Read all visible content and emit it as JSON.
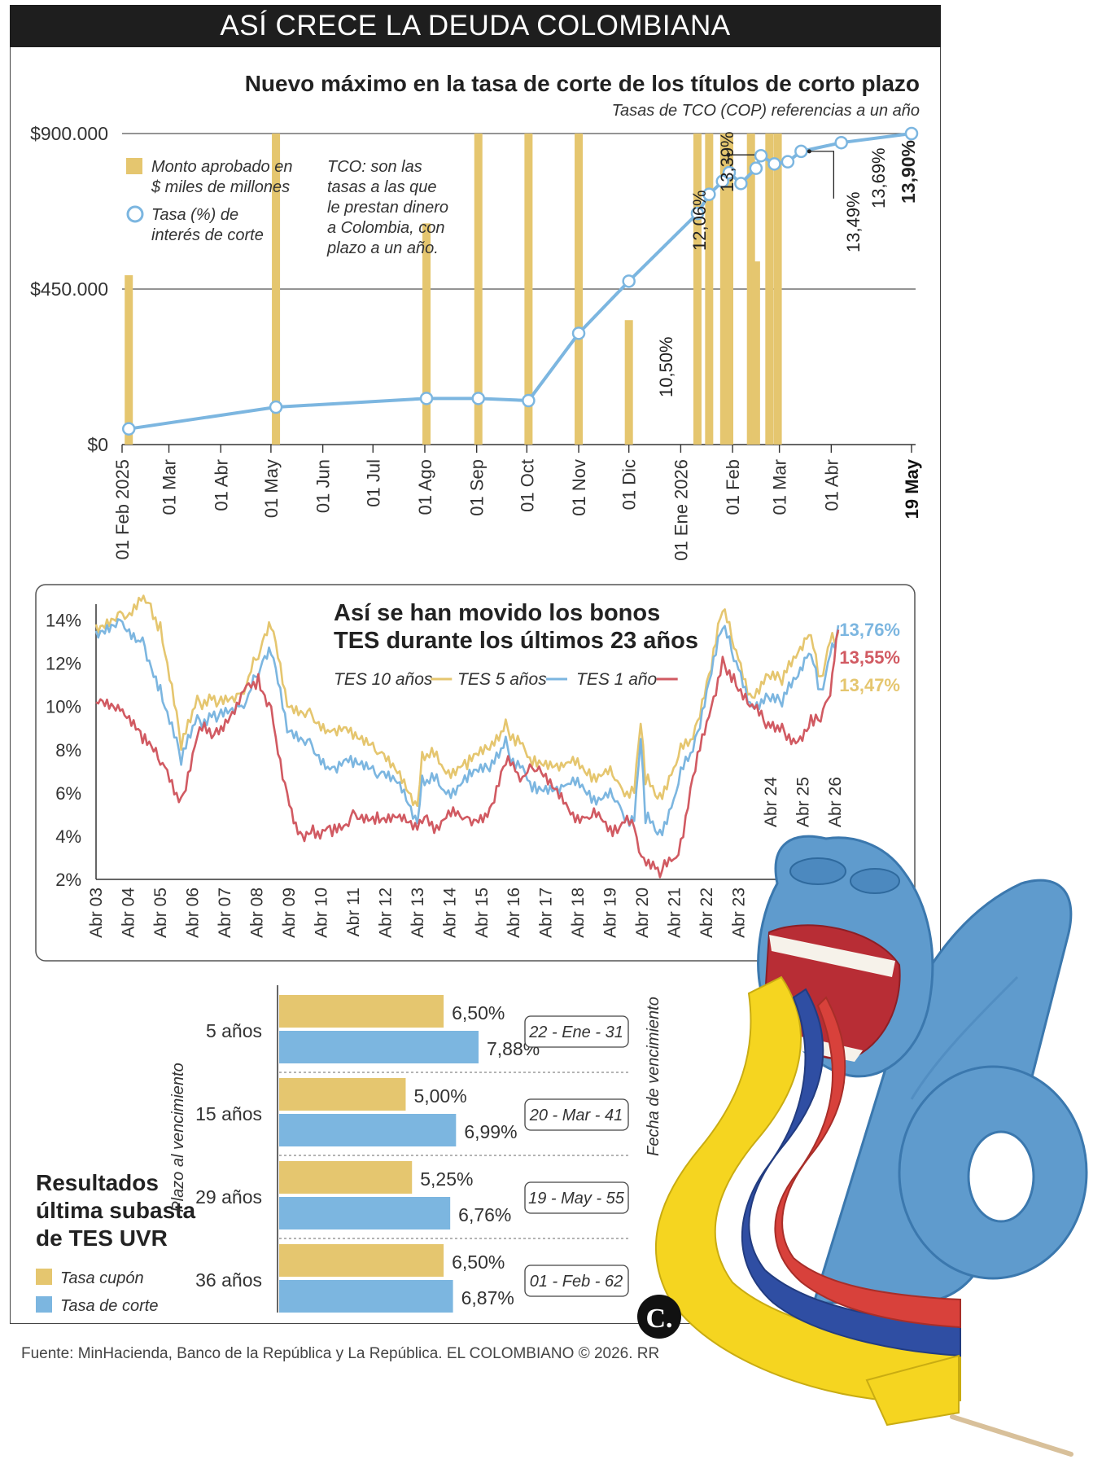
{
  "header": {
    "title": "ASÍ CRECE LA DEUDA COLOMBIANA"
  },
  "colors": {
    "gold": "#e5c66f",
    "blue": "#7cb6e0",
    "red": "#d15a62",
    "dark": "#222222",
    "bar_bg": "#1e1e1e"
  },
  "chart_data": [
    {
      "type": "bar",
      "title": "Nuevo máximo en la tasa de corte de los títulos de corto plazo",
      "subtitle": "Tasas de TCO (COP) referencias a un año",
      "note": "TCO: son las tasas a las que le prestan dinero a Colombia, con plazo a un año.",
      "y_ticks": [
        "$900.000",
        "$450.000",
        "$0"
      ],
      "ylim": [
        0,
        900000
      ],
      "x_ticks": [
        "01 Feb 2025",
        "01 Mar",
        "01 Abr",
        "01 May",
        "01 Jun",
        "01 Jul",
        "01 Ago",
        "01 Sep",
        "01 Oct",
        "01 Nov",
        "01 Dic",
        "01 Ene 2026",
        "01 Feb",
        "01 Mar",
        "01 Abr",
        "19 May"
      ],
      "legend": [
        "Monto aprobado en $ miles de millones",
        "Tasa (%) de interés de corte"
      ],
      "bars": [
        {
          "date": "2025-02-05",
          "value": 490000
        },
        {
          "date": "2025-05-04",
          "value": 900000
        },
        {
          "date": "2025-08-02",
          "value": 640000
        },
        {
          "date": "2025-09-02",
          "value": 900000
        },
        {
          "date": "2025-10-02",
          "value": 900000
        },
        {
          "date": "2025-11-01",
          "value": 900000
        },
        {
          "date": "2025-12-01",
          "value": 360000
        },
        {
          "date": "2026-01-11",
          "value": 900000
        },
        {
          "date": "2026-01-18",
          "value": 900000
        },
        {
          "date": "2026-01-27",
          "value": 900000
        },
        {
          "date": "2026-01-30",
          "value": 900000
        },
        {
          "date": "2026-02-12",
          "value": 900000
        },
        {
          "date": "2026-02-15",
          "value": 530000
        },
        {
          "date": "2026-02-23",
          "value": 900000
        },
        {
          "date": "2026-02-28",
          "value": 900000
        }
      ],
      "line": [
        {
          "date": "2025-02-05",
          "rate": 7.1
        },
        {
          "date": "2025-05-04",
          "rate": 7.6
        },
        {
          "date": "2025-08-02",
          "rate": 7.8
        },
        {
          "date": "2025-09-02",
          "rate": 7.8
        },
        {
          "date": "2025-10-02",
          "rate": 7.75
        },
        {
          "date": "2025-11-01",
          "rate": 9.3
        },
        {
          "date": "2025-12-01",
          "rate": 10.5
        },
        {
          "date": "2026-01-11",
          "rate": 12.06
        },
        {
          "date": "2026-01-18",
          "rate": 12.5
        },
        {
          "date": "2026-01-26",
          "rate": 12.8
        },
        {
          "date": "2026-01-30",
          "rate": 13.0
        },
        {
          "date": "2026-02-06",
          "rate": 12.75
        },
        {
          "date": "2026-02-15",
          "rate": 13.1
        },
        {
          "date": "2026-02-18",
          "rate": 13.39
        },
        {
          "date": "2026-02-26",
          "rate": 13.2
        },
        {
          "date": "2026-03-06",
          "rate": 13.25
        },
        {
          "date": "2026-03-14",
          "rate": 13.49
        },
        {
          "date": "2026-04-07",
          "rate": 13.69
        },
        {
          "date": "2026-05-19",
          "rate": 13.9
        }
      ],
      "rate_labels": [
        "10,50%",
        "12,06%",
        "13,39%",
        "13,49%",
        "13,69%",
        "13,90%"
      ]
    },
    {
      "type": "line",
      "title_lines": [
        "Así se han movido los bonos",
        "TES durante los últimos 23 años"
      ],
      "y_ticks": [
        "14%",
        "12%",
        "10%",
        "8%",
        "6%",
        "4%",
        "2%"
      ],
      "ylim": [
        2,
        15
      ],
      "x_ticks": [
        "Abr 03",
        "Abr 04",
        "Abr 05",
        "Abr 06",
        "Abr 07",
        "Abr 08",
        "Abr 09",
        "Abr 10",
        "Abr 11",
        "Abr 12",
        "Abr 13",
        "Abr 14",
        "Abr 15",
        "Abr 16",
        "Abr 17",
        "Abr 18",
        "Abr 19",
        "Abr 20",
        "Abr 21",
        "Abr 22",
        "Abr 23",
        "Abr 24",
        "Abr 25",
        "Abr 26"
      ],
      "series": [
        {
          "name": "TES 10 años",
          "color": "gold",
          "end_label": "13,47%",
          "x": [
            2003.25,
            2004,
            2004.8,
            2005.25,
            2005.9,
            2006.4,
            2007,
            2007.7,
            2008.3,
            2008.7,
            2009.2,
            2009.9,
            2010.6,
            2011.25,
            2012,
            2012.7,
            2013.25,
            2013.4,
            2014,
            2014.8,
            2015.5,
            2016,
            2016.3,
            2016.9,
            2017.8,
            2018.6,
            2019.4,
            2020,
            2020.2,
            2020.35,
            2020.8,
            2021.3,
            2021.9,
            2022.4,
            2022.75,
            2023.1,
            2023.6,
            2024.1,
            2024.6,
            2025.1,
            2025.5,
            2025.8,
            2026.1,
            2026.35
          ],
          "y": [
            13.8,
            14.4,
            14.8,
            13.9,
            8.0,
            10.5,
            10.0,
            10.6,
            12.2,
            13.6,
            10.0,
            9.9,
            8.9,
            8.5,
            7.8,
            7.0,
            5.4,
            7.9,
            7.3,
            7.1,
            8.0,
            9.4,
            8.2,
            7.7,
            7.2,
            7.1,
            6.6,
            6.0,
            9.2,
            6.4,
            6.0,
            7.3,
            9.1,
            11.7,
            14.4,
            12.7,
            10.6,
            11.5,
            11.0,
            12.5,
            13.3,
            11.4,
            13.0,
            13.47
          ]
        },
        {
          "name": "TES 5 años",
          "color": "blue",
          "end_label": "13,76%",
          "x": [
            2003.25,
            2004,
            2004.7,
            2005.25,
            2005.9,
            2006.4,
            2007,
            2007.7,
            2008.3,
            2008.7,
            2009.2,
            2009.9,
            2010.6,
            2011.25,
            2012,
            2012.7,
            2013.25,
            2013.4,
            2014,
            2014.8,
            2015.5,
            2016,
            2016.3,
            2016.9,
            2017.8,
            2018.6,
            2019.4,
            2020,
            2020.2,
            2020.35,
            2020.8,
            2021.3,
            2021.9,
            2022.4,
            2022.75,
            2023.1,
            2023.6,
            2024.1,
            2024.6,
            2025.1,
            2025.5,
            2025.8,
            2026.1,
            2026.35
          ],
          "y": [
            13.5,
            14.0,
            13.2,
            11.0,
            7.3,
            9.6,
            9.3,
            10.0,
            11.4,
            12.4,
            8.8,
            8.5,
            7.2,
            7.2,
            6.7,
            6.5,
            4.6,
            6.8,
            6.2,
            6.5,
            7.0,
            8.6,
            7.1,
            6.5,
            6.3,
            6.1,
            5.6,
            4.7,
            8.5,
            4.6,
            4.3,
            6.0,
            8.6,
            11.5,
            13.6,
            12.1,
            10.2,
            10.6,
            10.0,
            11.4,
            12.4,
            10.8,
            12.4,
            13.76
          ]
        },
        {
          "name": "TES 1 año",
          "color": "red",
          "end_label": "13,55%",
          "x": [
            2003.25,
            2004,
            2004.7,
            2005.25,
            2005.9,
            2006.4,
            2007,
            2007.7,
            2008.3,
            2008.7,
            2009.2,
            2009.6,
            2010,
            2010.6,
            2011.25,
            2012,
            2012.7,
            2013.25,
            2013.4,
            2014,
            2014.8,
            2015.5,
            2016,
            2016.3,
            2016.9,
            2017.8,
            2018.6,
            2019.4,
            2020,
            2020.3,
            2020.8,
            2021.3,
            2021.9,
            2022.4,
            2022.75,
            2023.1,
            2023.6,
            2024.1,
            2024.6,
            2025.1,
            2025.5,
            2025.8,
            2026.1,
            2026.35
          ],
          "y": [
            10.2,
            9.8,
            8.3,
            7.3,
            5.8,
            8.6,
            9.0,
            10.1,
            11.5,
            10.0,
            6.0,
            4.2,
            4.5,
            4.0,
            5.2,
            5.1,
            5.0,
            4.3,
            4.6,
            4.7,
            4.9,
            5.3,
            7.3,
            7.0,
            7.0,
            5.5,
            4.8,
            4.5,
            4.4,
            3.0,
            2.1,
            3.0,
            7.0,
            10.0,
            12.3,
            11.5,
            10.0,
            9.0,
            9.2,
            8.4,
            9.6,
            9.3,
            10.5,
            13.55
          ]
        }
      ]
    },
    {
      "type": "bar",
      "title_lines": [
        "Resultados",
        "última subasta",
        "de TES UVR"
      ],
      "y_axis_label": "Plazo al vencimiento",
      "date_axis_label": "Fecha de vencimiento",
      "legend": [
        "Tasa cupón",
        "Tasa de corte"
      ],
      "categories": [
        "5 años",
        "15 años",
        "29 años",
        "36 años"
      ],
      "maturity_dates": [
        "22 - Ene - 31",
        "20 - Mar - 41",
        "19 - May - 55",
        "01 - Feb - 62"
      ],
      "series": [
        {
          "name": "Tasa cupón",
          "values": [
            6.5,
            5.0,
            5.25,
            6.5
          ],
          "labels": [
            "6,50%",
            "5,00%",
            "5,25%",
            "6,50%"
          ]
        },
        {
          "name": "Tasa de corte",
          "values": [
            7.88,
            6.99,
            6.76,
            6.87
          ],
          "labels": [
            "7,88%",
            "6,99%",
            "6,76%",
            "6,87%"
          ]
        }
      ]
    }
  ],
  "footer": {
    "source": "Fuente: MinHacienda, Banco de la República y La República. EL COLOMBIANO © 2026. RR",
    "logo_letter": "C."
  }
}
